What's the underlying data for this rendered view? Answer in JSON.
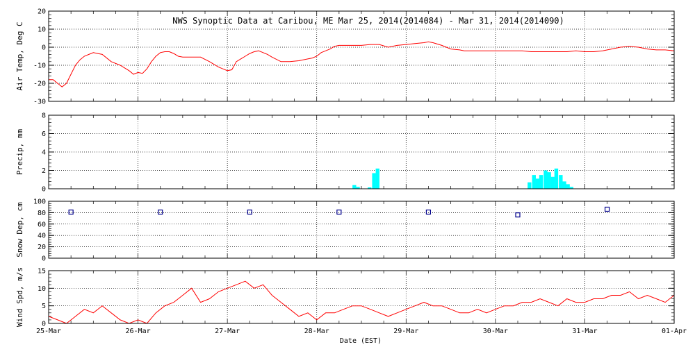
{
  "chart_data": {
    "type": "line",
    "title": "NWS Synoptic Data at Caribou, ME   Mar 25, 2014(2014084) - Mar 31, 2014(2014090)",
    "xlabel": "Date (EST)",
    "x_ticks": [
      "25-Mar",
      "26-Mar",
      "27-Mar",
      "28-Mar",
      "29-Mar",
      "30-Mar",
      "31-Mar",
      "01-Apr"
    ],
    "x_range_days": [
      0,
      7
    ],
    "grid": true,
    "panels": [
      {
        "type": "line",
        "ylabel": "Air Temp, Deg C",
        "ylim": [
          -30,
          20
        ],
        "yticks": [
          "-30",
          "-20",
          "-10",
          "0",
          "10",
          "20"
        ],
        "color": "#ff0000",
        "series": [
          {
            "x": [
              0.0,
              0.05,
              0.1,
              0.15,
              0.2,
              0.25,
              0.3,
              0.35,
              0.4,
              0.45,
              0.5,
              0.55,
              0.6,
              0.7,
              0.8,
              0.9,
              0.95,
              1.0,
              1.05,
              1.1,
              1.15,
              1.2,
              1.25,
              1.3,
              1.35,
              1.4,
              1.45,
              1.5,
              1.55,
              1.6,
              1.7,
              1.8,
              1.9,
              1.95,
              2.0,
              2.05,
              2.1,
              2.15,
              2.2,
              2.25,
              2.3,
              2.35,
              2.4,
              2.45,
              2.5,
              2.6,
              2.7,
              2.8,
              2.9,
              2.95,
              3.0,
              3.05,
              3.1,
              3.15,
              3.2,
              3.25,
              3.3,
              3.4,
              3.5,
              3.6,
              3.7,
              3.8,
              3.9,
              4.0,
              4.1,
              4.2,
              4.25,
              4.3,
              4.4,
              4.5,
              4.6,
              4.65,
              4.7,
              4.8,
              4.9,
              5.0,
              5.1,
              5.2,
              5.3,
              5.4,
              5.5,
              5.6,
              5.7,
              5.8,
              5.9,
              6.0,
              6.1,
              6.2,
              6.3,
              6.4,
              6.5,
              6.6,
              6.7,
              6.8,
              6.9,
              7.0
            ],
            "y": [
              -18,
              -18,
              -20,
              -22,
              -20,
              -15,
              -10,
              -7,
              -5,
              -4,
              -3,
              -3.5,
              -4,
              -8,
              -10,
              -13,
              -15,
              -14,
              -14.5,
              -12,
              -8,
              -5,
              -3,
              -2.5,
              -2.5,
              -3.5,
              -5,
              -5.5,
              -5.5,
              -5.5,
              -5.5,
              -8,
              -11,
              -12,
              -13,
              -12.5,
              -8,
              -6.5,
              -5,
              -3.5,
              -2.5,
              -2,
              -3,
              -4,
              -5.5,
              -8,
              -8,
              -7.5,
              -6.5,
              -6,
              -5,
              -3,
              -2,
              -1,
              0.5,
              1,
              1,
              1,
              1,
              1.5,
              1.5,
              0,
              1,
              1.5,
              2,
              2.5,
              3,
              2.5,
              1,
              -1,
              -1.5,
              -2,
              -2,
              -2,
              -2,
              -2,
              -2,
              -2,
              -2,
              -2.5,
              -2.5,
              -2.5,
              -2.5,
              -2.5,
              -2,
              -2.5,
              -2.5,
              -2,
              -1,
              0,
              0.5,
              0,
              -1,
              -1.5,
              -1.5,
              -2
            ]
          }
        ]
      },
      {
        "type": "bar",
        "ylabel": "Precip, mm",
        "ylim": [
          0,
          8
        ],
        "yticks": [
          "0",
          "2",
          "4",
          "6",
          "8"
        ],
        "color": "#00ffff",
        "bar_width_days": 0.042,
        "series": [
          {
            "x": [
              3.4,
              3.44,
              3.49,
              3.53,
              3.57,
              3.62,
              3.66,
              3.7,
              5.36,
              5.41,
              5.45,
              5.49,
              5.54,
              5.58,
              5.62,
              5.66,
              5.71,
              5.75,
              5.79,
              5.83,
              5.88,
              5.92
            ],
            "y": [
              0.4,
              0.2,
              0,
              0,
              0.15,
              1.7,
              2.2,
              0,
              0.7,
              1.5,
              1.1,
              1.5,
              2.0,
              1.8,
              1.3,
              2.2,
              1.5,
              0.8,
              0.5,
              0.2,
              0,
              0
            ]
          }
        ]
      },
      {
        "type": "scatter",
        "ylabel": "Snow Dep, cm",
        "ylim": [
          0,
          100
        ],
        "yticks": [
          "0",
          "20",
          "40",
          "60",
          "80",
          "100"
        ],
        "color": "#00008b",
        "series": [
          {
            "x": [
              0.25,
              1.25,
              2.25,
              3.25,
              4.25,
              5.25,
              6.25
            ],
            "y": [
              81,
              81,
              81,
              81,
              81,
              76,
              86
            ]
          }
        ]
      },
      {
        "type": "line",
        "ylabel": "Wind Spd, m/s",
        "ylim": [
          0,
          15
        ],
        "yticks": [
          "0",
          "5",
          "10",
          "15"
        ],
        "color": "#ff0000",
        "series": [
          {
            "x": [
              0.0,
              0.1,
              0.2,
              0.3,
              0.4,
              0.5,
              0.6,
              0.7,
              0.8,
              0.9,
              1.0,
              1.1,
              1.2,
              1.3,
              1.4,
              1.5,
              1.6,
              1.7,
              1.8,
              1.9,
              2.0,
              2.1,
              2.2,
              2.3,
              2.4,
              2.5,
              2.6,
              2.7,
              2.8,
              2.9,
              3.0,
              3.1,
              3.2,
              3.3,
              3.4,
              3.5,
              3.6,
              3.7,
              3.8,
              3.9,
              4.0,
              4.1,
              4.2,
              4.3,
              4.4,
              4.5,
              4.6,
              4.7,
              4.8,
              4.9,
              5.0,
              5.1,
              5.2,
              5.3,
              5.4,
              5.5,
              5.6,
              5.7,
              5.8,
              5.9,
              6.0,
              6.1,
              6.2,
              6.3,
              6.4,
              6.5,
              6.6,
              6.7,
              6.8,
              6.9,
              7.0
            ],
            "y": [
              2,
              1,
              0,
              2,
              4,
              3,
              5,
              3,
              1,
              0,
              1,
              0,
              3,
              5,
              6,
              8,
              10,
              6,
              7,
              9,
              10,
              11,
              12,
              10,
              11,
              8,
              6,
              4,
              2,
              3,
              1,
              3,
              3,
              4,
              5,
              5,
              4,
              3,
              2,
              3,
              4,
              5,
              6,
              5,
              5,
              4,
              3,
              3,
              4,
              3,
              4,
              5,
              5,
              6,
              6,
              7,
              6,
              5,
              7,
              6,
              6,
              7,
              7,
              8,
              8,
              9,
              7,
              8,
              7,
              6,
              8
            ]
          }
        ]
      }
    ]
  }
}
